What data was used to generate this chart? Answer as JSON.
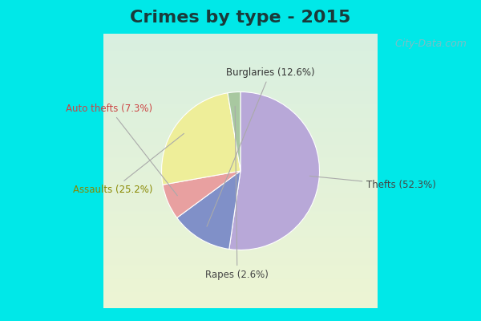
{
  "title": "Crimes by type - 2015",
  "title_fontsize": 16,
  "title_fontweight": "bold",
  "slices": [
    {
      "label": "Thefts",
      "pct": 52.3,
      "color": "#b8a8d8"
    },
    {
      "label": "Burglaries",
      "pct": 12.6,
      "color": "#8090c8"
    },
    {
      "label": "Auto thefts",
      "pct": 7.3,
      "color": "#e8a0a0"
    },
    {
      "label": "Assaults",
      "pct": 25.2,
      "color": "#eeee99"
    },
    {
      "label": "Rapes",
      "pct": 2.6,
      "color": "#a8c8a0"
    }
  ],
  "cyan_bar_color": "#00e8e8",
  "main_bg_top": "#c8ece0",
  "main_bg_bottom": "#d0eed8",
  "watermark": "  City-Data.com",
  "watermark_color": "#90b8c0",
  "title_color": "#1a3a3a"
}
